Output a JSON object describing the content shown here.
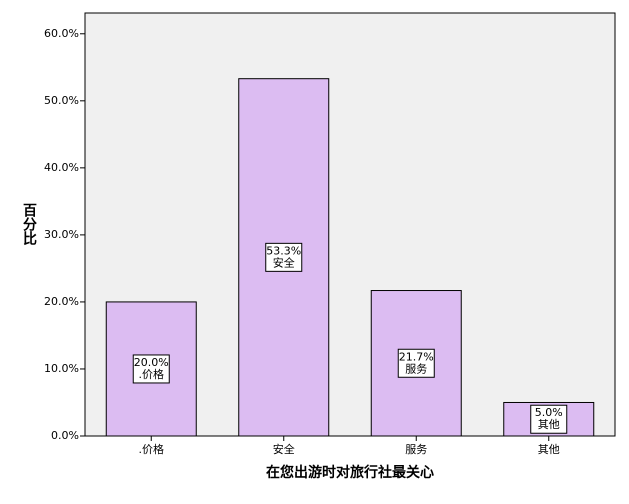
{
  "chart_data": {
    "type": "bar",
    "xlabel": "在您出游时对旅行社最关心",
    "ylabel": "百分比",
    "categories": [
      ".价格",
      "安全",
      "服务",
      "其他"
    ],
    "values": [
      20.0,
      53.3,
      21.7,
      5.0
    ],
    "value_labels": [
      "20.0%",
      "53.3%",
      "21.7%",
      "5.0%"
    ],
    "color": "#dcbcf2",
    "ylim": [
      0,
      63.1
    ],
    "yticks": [
      {
        "value": 0,
        "label": "0.0%"
      },
      {
        "value": 10,
        "label": "10.0%"
      },
      {
        "value": 20,
        "label": "20.0%"
      },
      {
        "value": 30,
        "label": "30.0%"
      },
      {
        "value": 40,
        "label": "40.0%"
      },
      {
        "value": 50,
        "label": "50.0%"
      },
      {
        "value": 60,
        "label": "60.0%"
      }
    ]
  }
}
